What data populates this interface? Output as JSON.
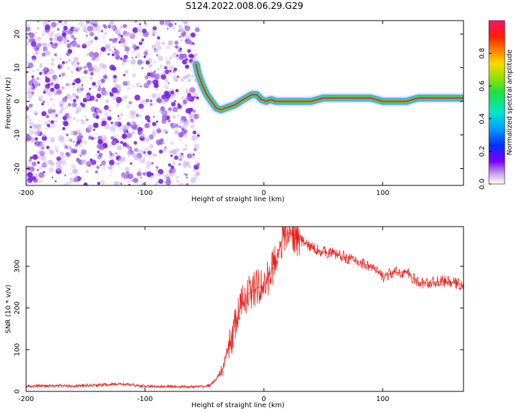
{
  "title": "S124.2022.008.06.29.G29",
  "colors": {
    "spectral_noise": "#8a3ce0",
    "snr_line": "#e8201a",
    "ridge_core": "#d4145a",
    "axis": "#000000"
  },
  "chart_data": [
    {
      "type": "heatmap",
      "xlabel": "Height of straight line (km)",
      "ylabel": "Frequency (Hz)",
      "xlim": [
        -200,
        168
      ],
      "ylim": [
        -25,
        24
      ],
      "xticks": [
        -200,
        -100,
        0,
        100
      ],
      "yticks": [
        20,
        10,
        0,
        -10,
        -20
      ],
      "colorbar": {
        "label": "Normalized spectral amplitude",
        "ticks": [
          "0.0",
          "0.2",
          "0.4",
          "0.6",
          "0.8"
        ],
        "range": [
          0,
          1
        ]
      },
      "noise_region": {
        "x_start": -200,
        "x_end": -55
      },
      "ridge": {
        "x": [
          -57,
          -55,
          -52,
          -48,
          -44,
          -40,
          -36,
          -32,
          -28,
          -24,
          -20,
          -15,
          -10,
          -6,
          -2,
          2,
          6,
          10,
          20,
          30,
          40,
          50,
          60,
          70,
          80,
          90,
          100,
          110,
          120,
          130,
          140,
          150,
          160,
          168
        ],
        "y": [
          11,
          8,
          5,
          2,
          0,
          -2,
          -2.5,
          -2,
          -1.5,
          -1,
          0,
          1,
          2,
          2,
          0.5,
          0,
          0.5,
          0,
          0,
          0,
          0,
          1,
          1,
          1,
          1,
          1,
          0,
          0,
          0,
          1,
          1,
          1,
          1,
          1
        ]
      }
    },
    {
      "type": "line",
      "xlabel": "Height of straight line (km)",
      "ylabel": "SNR (10 * v/v)",
      "xlim": [
        -200,
        168
      ],
      "ylim": [
        0,
        395
      ],
      "xticks": [
        -200,
        -100,
        0,
        100
      ],
      "yticks": [
        0,
        100,
        200,
        300
      ],
      "series": [
        {
          "x": [
            -200,
            -180,
            -160,
            -140,
            -120,
            -100,
            -80,
            -60,
            -50,
            -45,
            -40,
            -35,
            -30,
            -25,
            -20,
            -15,
            -10,
            -5,
            0,
            5,
            10,
            15,
            20,
            25,
            30,
            40,
            50,
            60,
            70,
            80,
            90,
            100,
            110,
            120,
            130,
            140,
            150,
            160,
            168
          ],
          "y": [
            12,
            14,
            13,
            15,
            18,
            12,
            12,
            11,
            12,
            15,
            30,
            50,
            100,
            150,
            200,
            230,
            240,
            250,
            250,
            280,
            320,
            360,
            380,
            375,
            365,
            345,
            335,
            330,
            320,
            310,
            300,
            275,
            285,
            285,
            260,
            260,
            265,
            260,
            255
          ]
        }
      ]
    }
  ]
}
